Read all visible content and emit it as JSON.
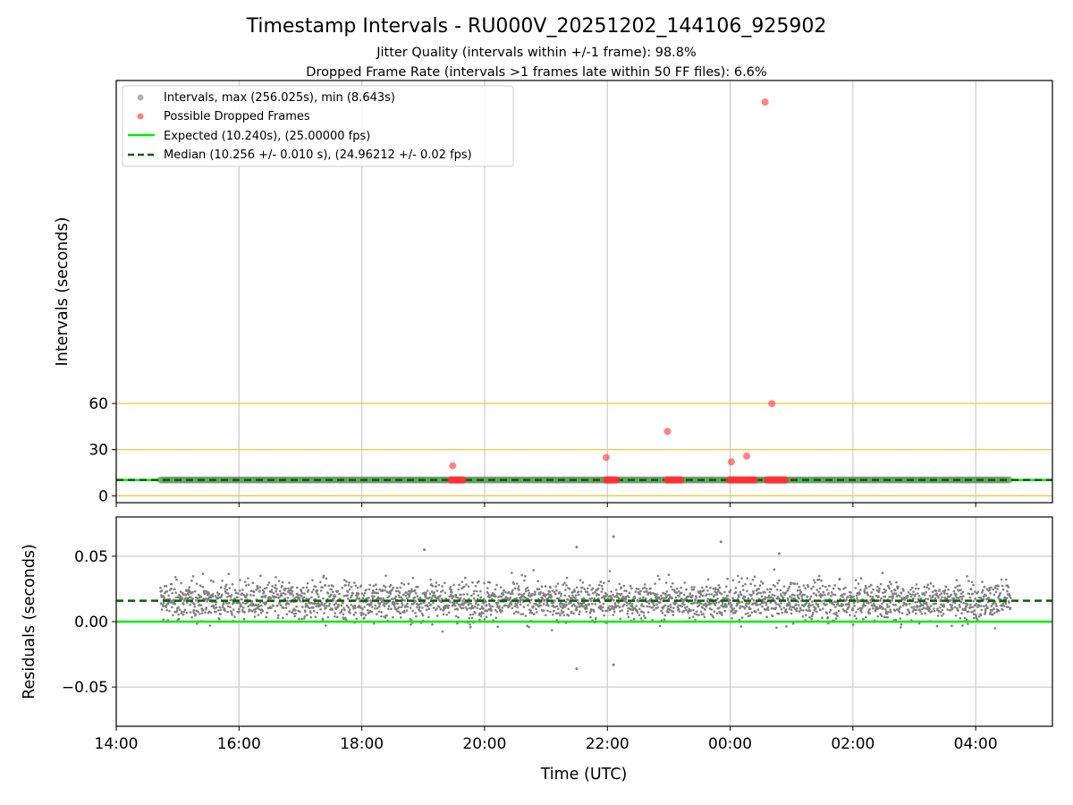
{
  "chart_data": {
    "type": "scatter",
    "title": "Timestamp Intervals - RU000V_20251202_144106_925902",
    "subtitle_lines": [
      "Jitter Quality (intervals within +/-1 frame): 98.8%",
      "Dropped Frame Rate (intervals >1 frames late within 50 FF files): 6.6%"
    ],
    "xlabel": "Time (UTC)",
    "x_ticks_hours": [
      0,
      2,
      4,
      6,
      8,
      10,
      12,
      14
    ],
    "x_tick_labels": [
      "14:00",
      "16:00",
      "18:00",
      "20:00",
      "22:00",
      "00:00",
      "02:00",
      "04:00"
    ],
    "x_range_hours": [
      0,
      15.25
    ],
    "data_x_range_hours": [
      0.72,
      14.57
    ],
    "colors": {
      "intervals": "#808080",
      "dropped": "#ff3030",
      "expected": "#00ee00",
      "median": "#006400",
      "hlines": "#f2c84b",
      "grid": "#cccccc"
    },
    "top_panel": {
      "ylabel": "Intervals (seconds)",
      "ylim": [
        -4.5,
        270
      ],
      "y_ticks": [
        0,
        30,
        60
      ],
      "y_tick_labels": [
        "0",
        "30",
        "60"
      ],
      "reference_lines": [
        0,
        30,
        60
      ],
      "expected_interval": 10.24,
      "median_interval": 10.256,
      "legend": {
        "position": "upper-left",
        "entries": [
          {
            "label": "Intervals, max (256.025s), min (8.643s)",
            "kind": "scatter-gray"
          },
          {
            "label": "Possible Dropped Frames",
            "kind": "scatter-red"
          },
          {
            "label": "Expected (10.240s), (25.00000 fps)",
            "kind": "line-green"
          },
          {
            "label": "Median (10.256 +/- 0.010 s), (24.96212 +/- 0.02 fps)",
            "kind": "line-dashed"
          }
        ]
      },
      "dropped_outliers": [
        {
          "x": 5.48,
          "y": 19.5
        },
        {
          "x": 7.98,
          "y": 24.9
        },
        {
          "x": 8.98,
          "y": 41.8
        },
        {
          "x": 10.02,
          "y": 22.1
        },
        {
          "x": 10.27,
          "y": 25.8
        },
        {
          "x": 10.57,
          "y": 256.0
        },
        {
          "x": 10.68,
          "y": 59.9
        }
      ],
      "dropped_clusters": [
        {
          "x_start": 5.45,
          "x_end": 5.65,
          "y": 10.25
        },
        {
          "x_start": 7.98,
          "x_end": 8.15,
          "y": 10.25
        },
        {
          "x_start": 8.97,
          "x_end": 9.2,
          "y": 10.25
        },
        {
          "x_start": 9.99,
          "x_end": 10.2,
          "y": 10.25
        },
        {
          "x_start": 10.25,
          "x_end": 10.4,
          "y": 10.25
        },
        {
          "x_start": 10.6,
          "x_end": 10.9,
          "y": 10.25
        }
      ]
    },
    "bottom_panel": {
      "ylabel": "Residuals (seconds)",
      "ylim": [
        -0.08,
        0.08
      ],
      "y_ticks": [
        -0.05,
        0.0,
        0.05
      ],
      "y_tick_labels": [
        "−0.05",
        "0.00",
        "0.05"
      ],
      "expected_residual": 0.0,
      "median_residual": 0.016,
      "residual_spread": {
        "mean": 0.016,
        "typical_min": -0.015,
        "typical_max": 0.045
      },
      "residual_outliers": [
        {
          "x": 5.02,
          "y": 0.055
        },
        {
          "x": 7.5,
          "y": 0.057
        },
        {
          "x": 8.1,
          "y": 0.065
        },
        {
          "x": 9.85,
          "y": 0.061
        },
        {
          "x": 10.8,
          "y": 0.052
        },
        {
          "x": 7.5,
          "y": -0.036
        },
        {
          "x": 8.1,
          "y": -0.033
        }
      ]
    }
  }
}
